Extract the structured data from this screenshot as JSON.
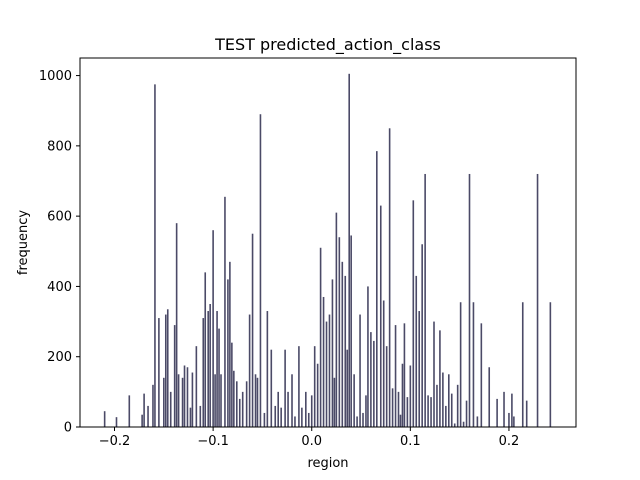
{
  "chart_data": {
    "type": "bar",
    "title": "TEST predicted_action_class",
    "xlabel": "region",
    "ylabel": "frequency",
    "xlim": [
      -0.235,
      0.268
    ],
    "ylim": [
      0,
      1050
    ],
    "xticks": [
      -0.2,
      -0.1,
      0.0,
      0.1,
      0.2
    ],
    "xtick_labels": [
      "−0.2",
      "−0.1",
      "0.0",
      "0.1",
      "0.2"
    ],
    "yticks": [
      0,
      200,
      400,
      600,
      800,
      1000
    ],
    "ytick_labels": [
      "0",
      "200",
      "400",
      "600",
      "800",
      "1000"
    ],
    "grid": false,
    "bar_color": "#2b2a4c",
    "series": [
      {
        "x": [
          -0.21,
          -0.198,
          -0.185,
          -0.172,
          -0.17,
          -0.166,
          -0.161,
          -0.159,
          -0.155,
          -0.15,
          -0.148,
          -0.146,
          -0.143,
          -0.139,
          -0.137,
          -0.135,
          -0.131,
          -0.129,
          -0.126,
          -0.123,
          -0.121,
          -0.117,
          -0.113,
          -0.11,
          -0.108,
          -0.105,
          -0.103,
          -0.1,
          -0.098,
          -0.096,
          -0.094,
          -0.092,
          -0.088,
          -0.085,
          -0.083,
          -0.081,
          -0.079,
          -0.076,
          -0.073,
          -0.07,
          -0.066,
          -0.063,
          -0.06,
          -0.057,
          -0.055,
          -0.052,
          -0.048,
          -0.045,
          -0.041,
          -0.037,
          -0.034,
          -0.031,
          -0.027,
          -0.024,
          -0.02,
          -0.017,
          -0.013,
          -0.01,
          -0.006,
          -0.003,
          0.0,
          0.003,
          0.006,
          0.009,
          0.012,
          0.015,
          0.018,
          0.021,
          0.023,
          0.025,
          0.028,
          0.031,
          0.034,
          0.036,
          0.038,
          0.04,
          0.043,
          0.046,
          0.049,
          0.052,
          0.055,
          0.057,
          0.06,
          0.063,
          0.066,
          0.07,
          0.073,
          0.076,
          0.079,
          0.082,
          0.085,
          0.088,
          0.09,
          0.092,
          0.094,
          0.097,
          0.1,
          0.103,
          0.106,
          0.109,
          0.112,
          0.115,
          0.118,
          0.121,
          0.124,
          0.127,
          0.13,
          0.133,
          0.136,
          0.139,
          0.142,
          0.145,
          0.148,
          0.151,
          0.154,
          0.157,
          0.16,
          0.164,
          0.168,
          0.172,
          0.18,
          0.188,
          0.195,
          0.2,
          0.203,
          0.205,
          0.214,
          0.218,
          0.229,
          0.242
        ],
        "values": [
          45,
          28,
          90,
          35,
          95,
          60,
          120,
          975,
          310,
          140,
          320,
          335,
          100,
          290,
          580,
          150,
          140,
          175,
          170,
          55,
          155,
          230,
          60,
          310,
          440,
          330,
          350,
          560,
          150,
          330,
          280,
          150,
          655,
          420,
          470,
          240,
          160,
          130,
          80,
          100,
          130,
          320,
          550,
          150,
          140,
          890,
          40,
          330,
          220,
          60,
          100,
          55,
          220,
          100,
          150,
          30,
          230,
          55,
          100,
          40,
          90,
          230,
          180,
          510,
          370,
          300,
          320,
          420,
          140,
          610,
          540,
          470,
          430,
          220,
          1005,
          545,
          150,
          30,
          320,
          40,
          90,
          400,
          270,
          245,
          785,
          630,
          360,
          230,
          850,
          110,
          290,
          100,
          35,
          180,
          295,
          85,
          175,
          645,
          430,
          330,
          520,
          720,
          90,
          85,
          300,
          120,
          275,
          155,
          60,
          150,
          95,
          10,
          120,
          355,
          15,
          75,
          720,
          355,
          30,
          295,
          170,
          80,
          100,
          40,
          95,
          30,
          355,
          75,
          720,
          355
        ]
      }
    ]
  }
}
